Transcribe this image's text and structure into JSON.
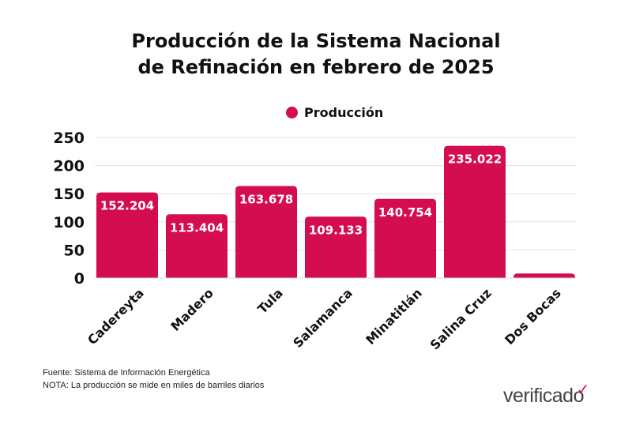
{
  "chart_data": {
    "type": "bar",
    "title_line1": "Producción de la Sistema Nacional",
    "title_line2": "de Refinación en febrero de 2025",
    "categories": [
      "Cadereyta",
      "Madero",
      "Tula",
      "Salamanca",
      "Minatitlán",
      "Salina Cruz",
      "Dos Bocas"
    ],
    "series": [
      {
        "name": "Producción",
        "values": [
          152.204,
          113.404,
          163.678,
          109.133,
          140.754,
          235.022,
          8
        ],
        "color": "#D40D51"
      }
    ],
    "data_labels": [
      "152.204",
      "113.404",
      "163.678",
      "109.133",
      "140.754",
      "235.022",
      ""
    ],
    "yticks": [
      0,
      50,
      100,
      150,
      200,
      250
    ],
    "ylim": [
      0,
      250
    ],
    "grid": true,
    "legend": "top-center"
  },
  "footer": {
    "source": "Fuente: Sistema de Información Energética",
    "note": "NOTA: La producción se mide en miles de barriles diarios"
  },
  "logo": "verificado"
}
